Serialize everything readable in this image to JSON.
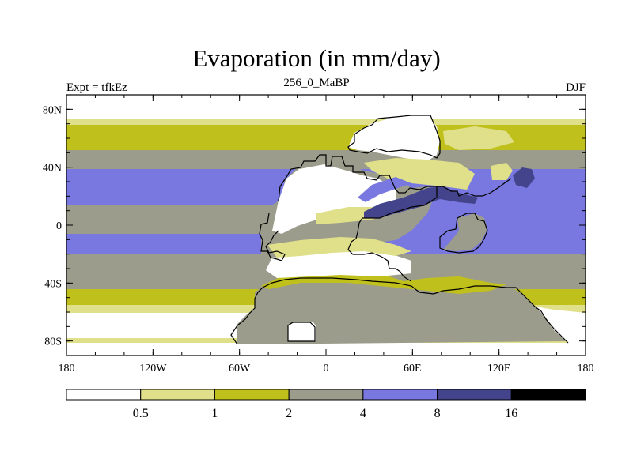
{
  "title": "Evaporation (in mm/day)",
  "subtitle": {
    "left": "Expt = tfkEz",
    "center": "256_0_MaBP",
    "right": "DJF"
  },
  "map": {
    "projection": "cylindrical-equidistant",
    "lon_range": [
      -180,
      180
    ],
    "lat_range": [
      -90,
      90
    ],
    "lat_ticks": [
      {
        "value": 80,
        "label": "80N"
      },
      {
        "value": 40,
        "label": "40N"
      },
      {
        "value": 0,
        "label": "0"
      },
      {
        "value": -40,
        "label": "40S"
      },
      {
        "value": -80,
        "label": "80S"
      }
    ],
    "lon_ticks": [
      {
        "value": -180,
        "label": "180"
      },
      {
        "value": -120,
        "label": "120W"
      },
      {
        "value": -60,
        "label": "60W"
      },
      {
        "value": 0,
        "label": "0"
      },
      {
        "value": 60,
        "label": "60E"
      },
      {
        "value": 120,
        "label": "120E"
      },
      {
        "value": 180,
        "label": "180"
      }
    ]
  },
  "colorbar": {
    "colors": [
      "#ffffff",
      "#e0e08a",
      "#c0c01c",
      "#9c9c8c",
      "#7878e0",
      "#44448c",
      "#000000"
    ],
    "boundaries": [
      "0.5",
      "1",
      "2",
      "4",
      "8",
      "16"
    ]
  },
  "colors": {
    "lt_0_5": "#ffffff",
    "0_5_to_1": "#e0e08a",
    "1_to_2": "#c0c01c",
    "2_to_4": "#9c9c8c",
    "4_to_8": "#7878e0",
    "8_to_16": "#44448c",
    "gt_16": "#000000",
    "coastline": "#000000"
  }
}
